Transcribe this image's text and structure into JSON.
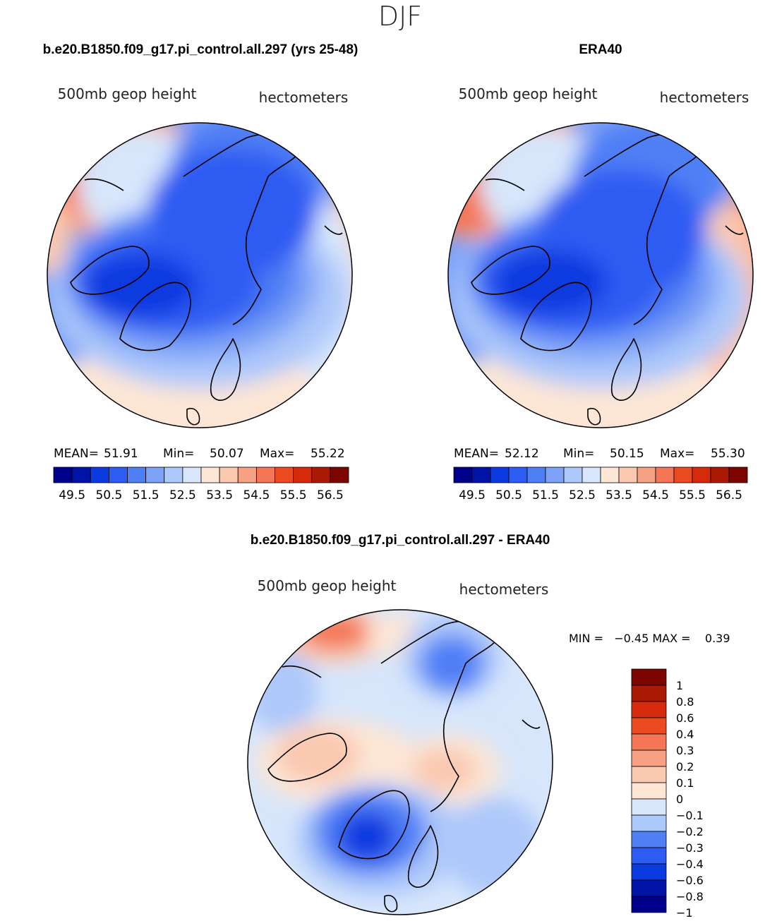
{
  "figure": {
    "season": "DJF"
  },
  "colors": {
    "main_levels": [
      "#00008a",
      "#0013a6",
      "#0a3ae0",
      "#2d5cf2",
      "#4f7ff5",
      "#7ea2f7",
      "#adc8fa",
      "#d7e6fb",
      "#fde6d6",
      "#fbc8b0",
      "#f7a184",
      "#f47656",
      "#ec4a21",
      "#d62a0c",
      "#aa1a04",
      "#7d0500"
    ],
    "diff_levels": [
      "#00008a",
      "#0013a6",
      "#0a3ae0",
      "#2d5cf2",
      "#4f7ff5",
      "#adc8fa",
      "#d7e6fb",
      "#fde6d6",
      "#fbc8b0",
      "#f7a184",
      "#f47656",
      "#ec4a21",
      "#d62a0c",
      "#aa1a04",
      "#7d0500"
    ],
    "coast": "#000000"
  },
  "panels": [
    {
      "title": "b.e20.B1850.f09_g17.pi_control.all.297 (yrs 25-48)",
      "variable": "500mb geop height",
      "units": "hectometers",
      "stats": {
        "mean_label": "MEAN=",
        "mean": "51.91",
        "min_label": "Min=",
        "min": "50.07",
        "max_label": "Max=",
        "max": "55.22"
      },
      "colorbar_ticks": [
        "49.5",
        "50.5",
        "51.5",
        "52.5",
        "53.5",
        "54.5",
        "55.5",
        "56.5"
      ]
    },
    {
      "title": "ERA40",
      "variable": "500mb geop height",
      "units": "hectometers",
      "stats": {
        "mean_label": "MEAN=",
        "mean": "52.12",
        "min_label": "Min=",
        "min": "50.15",
        "max_label": "Max=",
        "max": "55.30"
      },
      "colorbar_ticks": [
        "49.5",
        "50.5",
        "51.5",
        "52.5",
        "53.5",
        "54.5",
        "55.5",
        "56.5"
      ]
    }
  ],
  "difference": {
    "title": "b.e20.B1850.f09_g17.pi_control.all.297 - ERA40",
    "variable": "500mb geop height",
    "units": "hectometers",
    "stats_text": "MIN =   −0.45 MAX =    0.39",
    "colorbar_ticks": [
      "1",
      "0.8",
      "0.6",
      "0.4",
      "0.3",
      "0.2",
      "0.1",
      "0",
      "−0.1",
      "−0.2",
      "−0.3",
      "−0.4",
      "−0.6",
      "−0.8",
      "−1"
    ]
  }
}
